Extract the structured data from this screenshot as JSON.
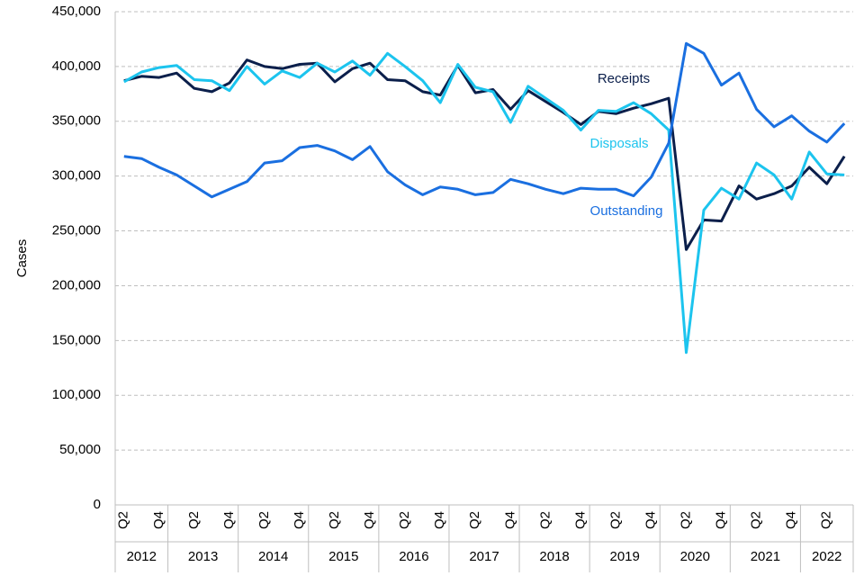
{
  "chart_data": {
    "type": "line",
    "ylabel": "Cases",
    "categories": [
      "Q2",
      null,
      "Q4",
      null,
      "Q2",
      null,
      "Q4",
      null,
      "Q2",
      null,
      "Q4",
      null,
      "Q2",
      null,
      "Q4",
      null,
      "Q2",
      null,
      "Q4",
      null,
      "Q2",
      null,
      "Q4",
      null,
      "Q2",
      null,
      "Q4",
      null,
      "Q2",
      null,
      "Q4",
      null,
      "Q2",
      null,
      "Q4",
      null,
      "Q2",
      null,
      "Q4",
      null,
      "Q2",
      null
    ],
    "year_groups": [
      {
        "label": "2012",
        "count": 3
      },
      {
        "label": "2013",
        "count": 4
      },
      {
        "label": "2014",
        "count": 4
      },
      {
        "label": "2015",
        "count": 4
      },
      {
        "label": "2016",
        "count": 4
      },
      {
        "label": "2017",
        "count": 4
      },
      {
        "label": "2018",
        "count": 4
      },
      {
        "label": "2019",
        "count": 4
      },
      {
        "label": "2020",
        "count": 4
      },
      {
        "label": "2021",
        "count": 4
      },
      {
        "label": "2022",
        "count": 3
      }
    ],
    "series": [
      {
        "name": "Receipts",
        "color": "#0b1f4b",
        "values": [
          387000,
          391000,
          390000,
          394000,
          380000,
          377000,
          385000,
          406000,
          400000,
          398000,
          402000,
          403000,
          386000,
          398000,
          403000,
          388000,
          387000,
          377000,
          374000,
          401000,
          376000,
          379000,
          361000,
          378000,
          368000,
          358000,
          347000,
          359000,
          357000,
          362000,
          366000,
          371000,
          233000,
          260000,
          259000,
          291000,
          279000,
          284000,
          291000,
          308000,
          293000,
          318000
        ]
      },
      {
        "name": "Disposals",
        "color": "#1cc4ee",
        "values": [
          386000,
          395000,
          399000,
          401000,
          388000,
          387000,
          378000,
          400000,
          384000,
          396000,
          390000,
          403000,
          395000,
          405000,
          392000,
          412000,
          400000,
          387000,
          367000,
          402000,
          381000,
          377000,
          349000,
          382000,
          371000,
          360000,
          342000,
          360000,
          359000,
          367000,
          357000,
          342000,
          139000,
          269000,
          289000,
          279000,
          312000,
          301000,
          279000,
          322000,
          302000,
          301000
        ]
      },
      {
        "name": "Outstanding",
        "color": "#1a6fe0",
        "values": [
          318000,
          316000,
          308000,
          301000,
          291000,
          281000,
          288000,
          295000,
          312000,
          314000,
          326000,
          328000,
          323000,
          315000,
          327000,
          304000,
          292000,
          283000,
          290000,
          288000,
          283000,
          285000,
          297000,
          293000,
          288000,
          284000,
          289000,
          288000,
          288000,
          282000,
          299000,
          330000,
          421000,
          412000,
          383000,
          394000,
          361000,
          345000,
          355000,
          341000,
          331000,
          348000
        ]
      }
    ],
    "ylim": [
      0,
      450000
    ],
    "yticks": [
      0,
      {
        "value": 50000,
        "label": "50,000"
      },
      {
        "value": 100000,
        "label": "100,000"
      },
      {
        "value": 150000,
        "label": "150,000"
      },
      {
        "value": 200000,
        "label": "200,000"
      },
      {
        "value": 250000,
        "label": "250,000"
      },
      {
        "value": 300000,
        "label": "300,000"
      },
      {
        "value": 350000,
        "label": "350,000"
      },
      {
        "value": 400000,
        "label": "400,000"
      },
      {
        "value": 450000,
        "label": "450,000"
      }
    ],
    "grid": true
  }
}
